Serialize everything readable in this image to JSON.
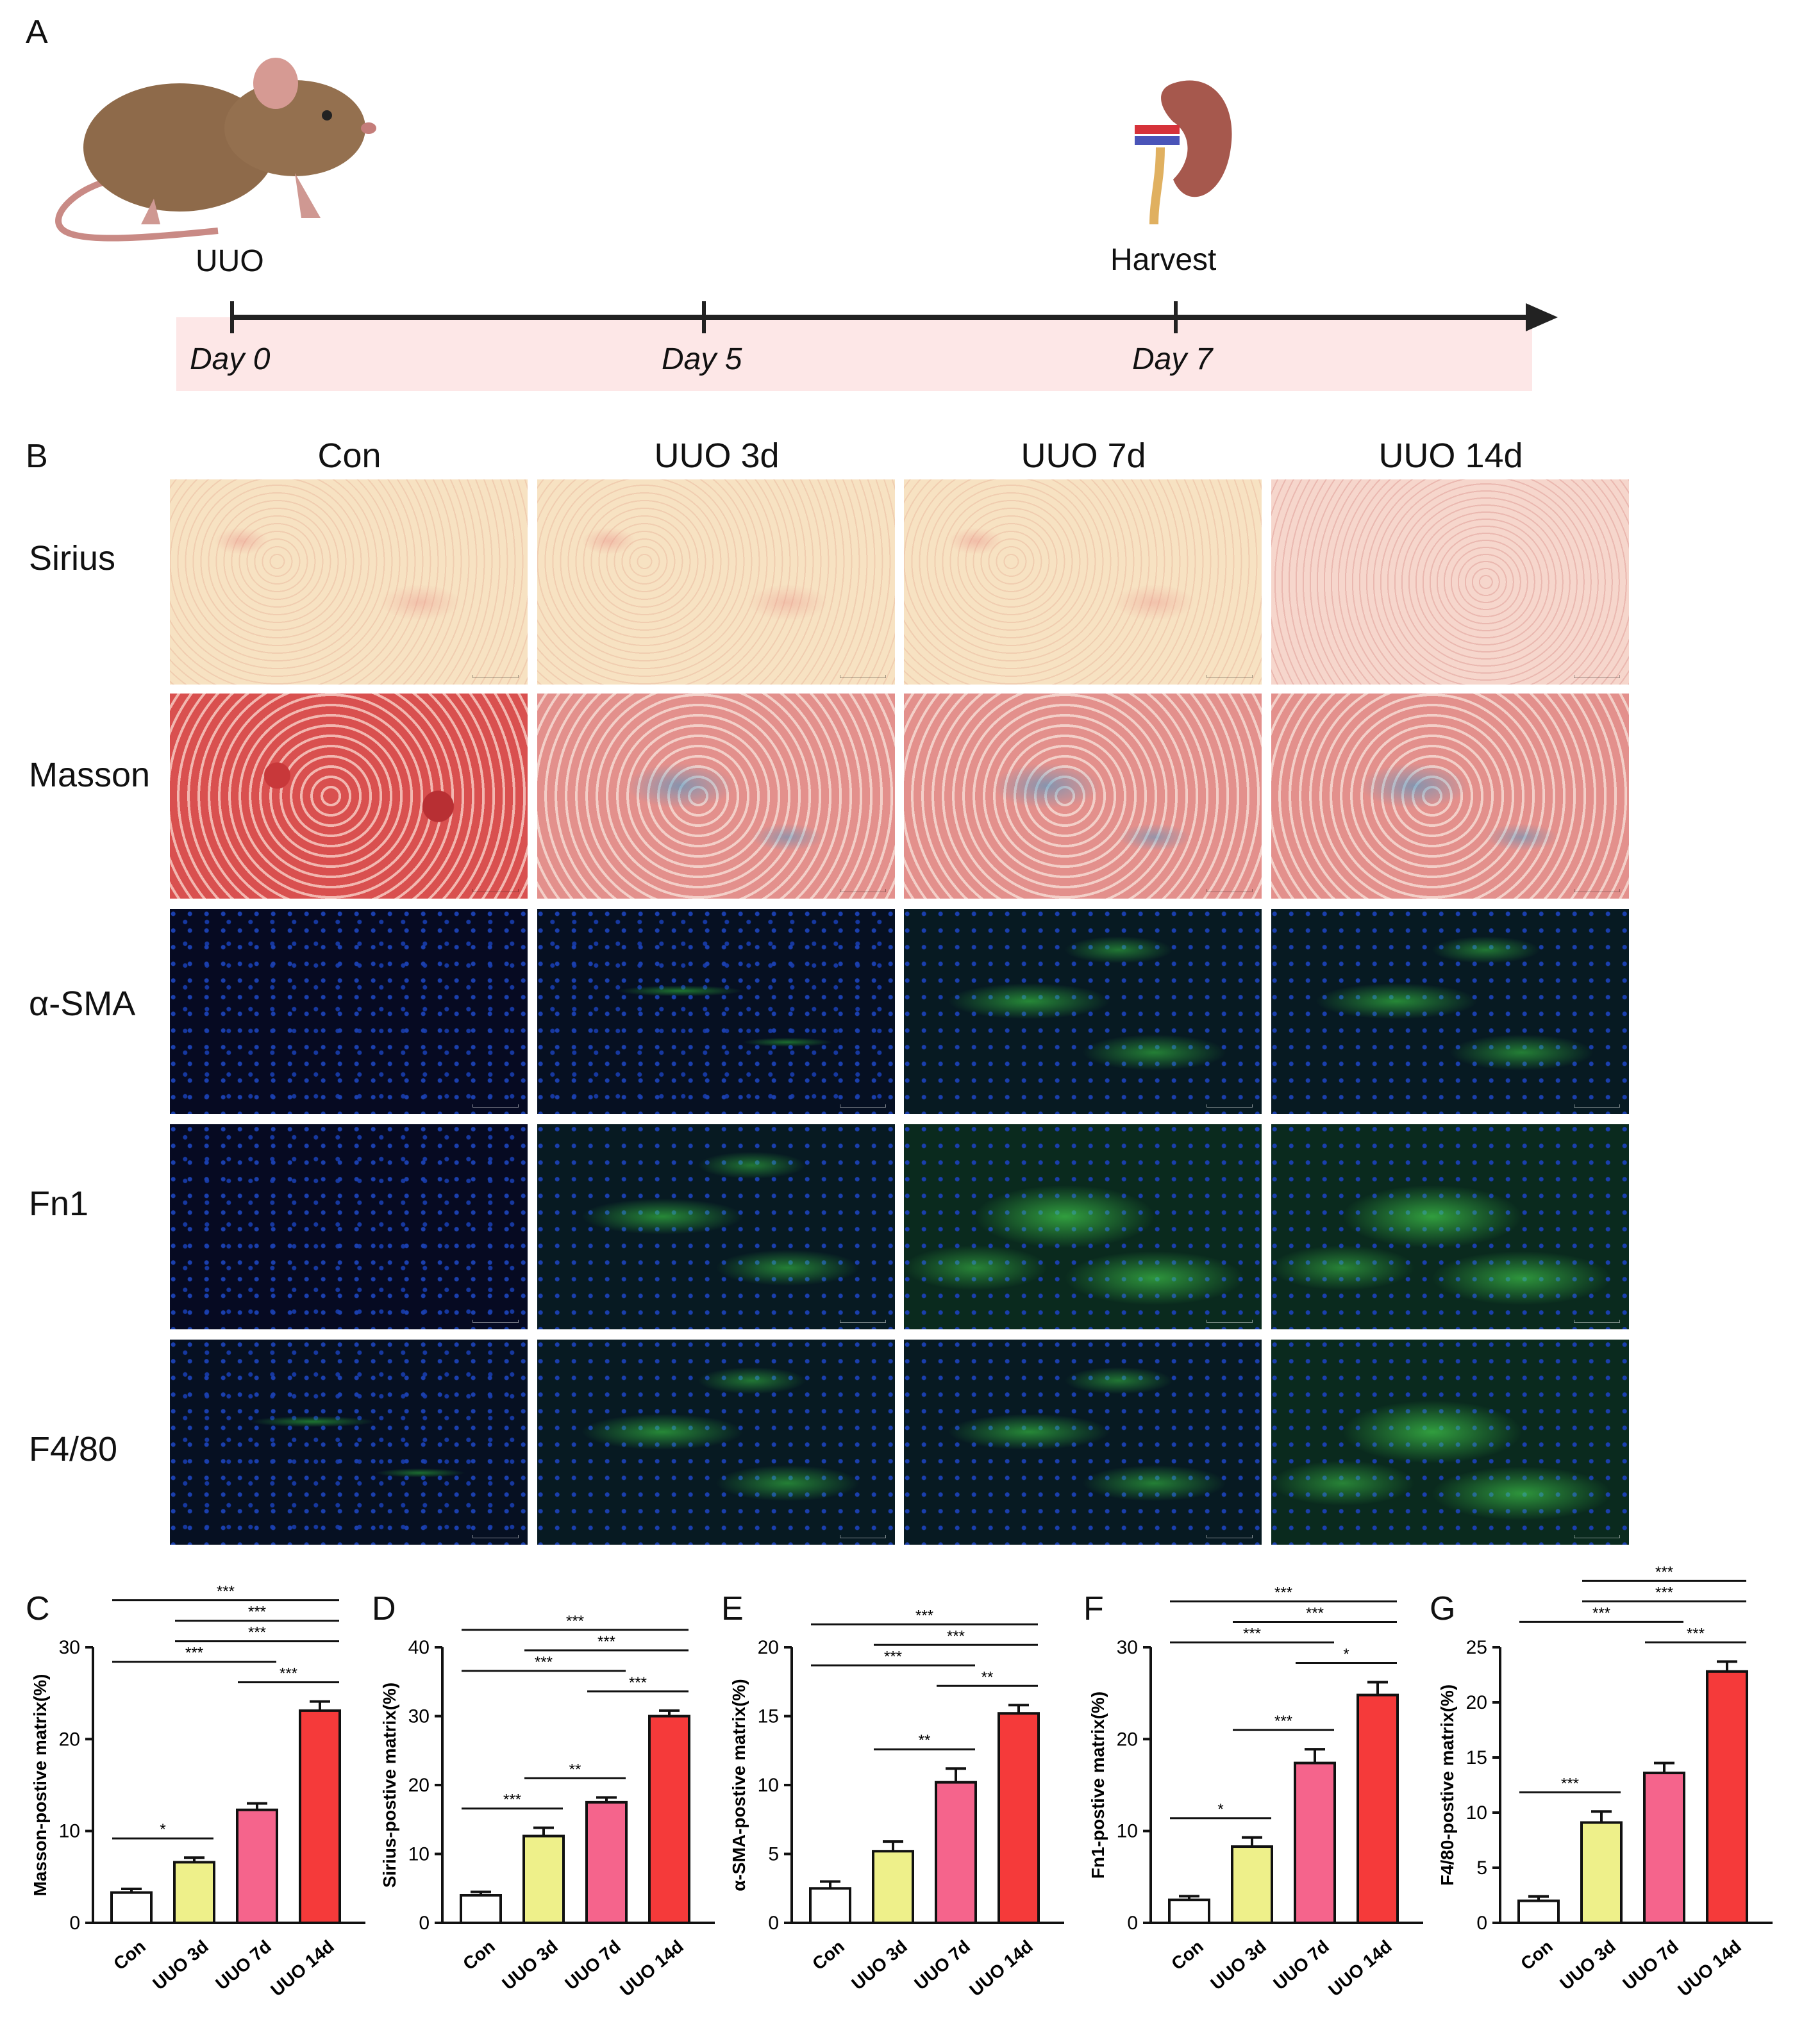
{
  "panel_letters": [
    "A",
    "B",
    "C",
    "D",
    "E",
    "F",
    "G"
  ],
  "timeline": {
    "start_label": "UUO",
    "end_label": "Harvest",
    "days": [
      "Day 0",
      "Day 5",
      "Day 7"
    ]
  },
  "histology": {
    "columns": [
      "Con",
      "UUO 3d",
      "UUO 7d",
      "UUO 14d"
    ],
    "rows": [
      "Sirius",
      "Masson",
      "α-SMA",
      "Fn1",
      "F4/80"
    ]
  },
  "chart_data": [
    {
      "type": "bar",
      "panel": "C",
      "categories": [
        "Con",
        "UUO 3d",
        "UUO 7d",
        "UUO 14d"
      ],
      "values": [
        3.3,
        6.6,
        12.3,
        23.1
      ],
      "errors": [
        0.4,
        0.5,
        0.7,
        1.0
      ],
      "ylabel": "Masson-postive matrix(%)",
      "ylim": [
        0,
        30
      ],
      "yticks": [
        0,
        10,
        20,
        30
      ],
      "colors": [
        "#ffffff",
        "#eef08a",
        "#f5648c",
        "#f53a3a"
      ],
      "brackets": [
        {
          "from": 0,
          "to": 1,
          "label": "*"
        },
        {
          "from": 0,
          "to": 2,
          "label": "***"
        },
        {
          "from": 0,
          "to": 3,
          "label": "***"
        },
        {
          "from": 1,
          "to": 3,
          "label": "***"
        },
        {
          "from": 1,
          "to": 3,
          "label": "***"
        },
        {
          "from": 2,
          "to": 3,
          "label": "***"
        }
      ]
    },
    {
      "type": "bar",
      "panel": "D",
      "categories": [
        "Con",
        "UUO 3d",
        "UUO 7d",
        "UUO 14d"
      ],
      "values": [
        4.0,
        12.6,
        17.5,
        30.0
      ],
      "errors": [
        0.5,
        1.2,
        0.7,
        0.8
      ],
      "ylabel": "Sirius-postive matrix(%)",
      "ylim": [
        0,
        40
      ],
      "yticks": [
        0,
        10,
        20,
        30,
        40
      ],
      "colors": [
        "#ffffff",
        "#eef08a",
        "#f5648c",
        "#f53a3a"
      ],
      "brackets": [
        {
          "from": 0,
          "to": 1,
          "label": "***"
        },
        {
          "from": 0,
          "to": 2,
          "label": "***"
        },
        {
          "from": 0,
          "to": 3,
          "label": "***"
        },
        {
          "from": 1,
          "to": 2,
          "label": "**"
        },
        {
          "from": 1,
          "to": 3,
          "label": "***"
        },
        {
          "from": 2,
          "to": 3,
          "label": "***"
        }
      ]
    },
    {
      "type": "bar",
      "panel": "E",
      "categories": [
        "Con",
        "UUO 3d",
        "UUO 7d",
        "UUO 14d"
      ],
      "values": [
        2.5,
        5.2,
        10.2,
        15.2
      ],
      "errors": [
        0.5,
        0.7,
        1.0,
        0.6
      ],
      "ylabel": "α-SMA-postive matrix(%)",
      "ylim": [
        0,
        20
      ],
      "yticks": [
        0,
        5,
        10,
        15,
        20
      ],
      "colors": [
        "#ffffff",
        "#eef08a",
        "#f5648c",
        "#f53a3a"
      ],
      "brackets": [
        {
          "from": 0,
          "to": 2,
          "label": "***"
        },
        {
          "from": 0,
          "to": 3,
          "label": "***"
        },
        {
          "from": 1,
          "to": 2,
          "label": "**"
        },
        {
          "from": 1,
          "to": 3,
          "label": "***"
        },
        {
          "from": 2,
          "to": 3,
          "label": "**"
        }
      ]
    },
    {
      "type": "bar",
      "panel": "F",
      "categories": [
        "Con",
        "UUO 3d",
        "UUO 7d",
        "UUO 14d"
      ],
      "values": [
        2.5,
        8.3,
        17.4,
        24.8
      ],
      "errors": [
        0.4,
        1.0,
        1.5,
        1.4
      ],
      "ylabel": "Fn1-postive matrix(%)",
      "ylim": [
        0,
        30
      ],
      "yticks": [
        0,
        10,
        20,
        30
      ],
      "colors": [
        "#ffffff",
        "#eef08a",
        "#f5648c",
        "#f53a3a"
      ],
      "brackets": [
        {
          "from": 0,
          "to": 1,
          "label": "*"
        },
        {
          "from": 0,
          "to": 2,
          "label": "***"
        },
        {
          "from": 0,
          "to": 3,
          "label": "***"
        },
        {
          "from": 1,
          "to": 2,
          "label": "***"
        },
        {
          "from": 1,
          "to": 3,
          "label": "***"
        },
        {
          "from": 2,
          "to": 3,
          "label": "*"
        }
      ]
    },
    {
      "type": "bar",
      "panel": "G",
      "categories": [
        "Con",
        "UUO 3d",
        "UUO 7d",
        "UUO 14d"
      ],
      "values": [
        2.0,
        9.1,
        13.6,
        22.8
      ],
      "errors": [
        0.4,
        1.0,
        0.9,
        0.9
      ],
      "ylabel": "F4/80-postive matrix(%)",
      "ylim": [
        0,
        25
      ],
      "yticks": [
        0,
        5,
        10,
        15,
        20,
        25
      ],
      "colors": [
        "#ffffff",
        "#eef08a",
        "#f5648c",
        "#f53a3a"
      ],
      "brackets": [
        {
          "from": 0,
          "to": 1,
          "label": "***"
        },
        {
          "from": 0,
          "to": 2,
          "label": "***"
        },
        {
          "from": 0,
          "to": 3,
          "label": "***"
        },
        {
          "from": 1,
          "to": 3,
          "label": "***"
        },
        {
          "from": 1,
          "to": 3,
          "label": "***"
        },
        {
          "from": 2,
          "to": 3,
          "label": "***"
        }
      ]
    }
  ]
}
